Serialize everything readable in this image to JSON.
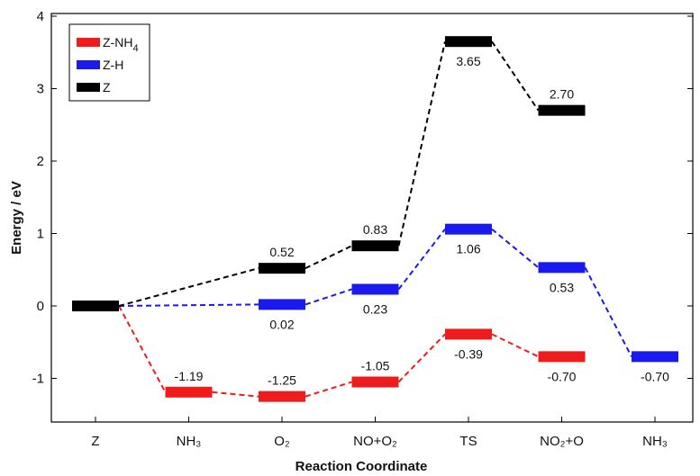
{
  "chart_data": {
    "type": "line",
    "xlabel": "Reaction Coordinate",
    "ylabel": "Energy / eV",
    "ylim": [
      -1.6,
      4.0
    ],
    "yticks": [
      "4",
      "3",
      "2",
      "1",
      "0",
      "-1"
    ],
    "yticks_values": [
      4,
      3,
      2,
      1,
      0,
      -1
    ],
    "categories": [
      "Z",
      "NH₃",
      "O₂",
      "NO+O₂",
      "TS",
      "NO₂+O",
      "NH₃"
    ],
    "legend_position": "top-left",
    "series": [
      {
        "name": "Z-NH₄",
        "name_main": "Z-NH",
        "name_sub": "4",
        "color": "#ee1c1c",
        "points": [
          {
            "x": 0,
            "y": 0
          },
          {
            "x": 1,
            "y": -1.19,
            "label": "-1.19"
          },
          {
            "x": 2,
            "y": -1.25,
            "label": "-1.25"
          },
          {
            "x": 3,
            "y": -1.05,
            "label": "-1.05"
          },
          {
            "x": 4,
            "y": -0.39,
            "label": "-0.39"
          },
          {
            "x": 5,
            "y": -0.7,
            "label": "-0.70"
          }
        ]
      },
      {
        "name": "Z-H",
        "color": "#1a1aee",
        "points": [
          {
            "x": 0,
            "y": 0
          },
          {
            "x": 2,
            "y": 0.02,
            "label": "0.02"
          },
          {
            "x": 3,
            "y": 0.23,
            "label": "0.23"
          },
          {
            "x": 4,
            "y": 1.06,
            "label": "1.06"
          },
          {
            "x": 5,
            "y": 0.53,
            "label": "0.53"
          },
          {
            "x": 6,
            "y": -0.7,
            "label": "-0.70"
          }
        ]
      },
      {
        "name": "Z",
        "color": "#000000",
        "points": [
          {
            "x": 0,
            "y": 0
          },
          {
            "x": 2,
            "y": 0.52,
            "label": "0.52"
          },
          {
            "x": 3,
            "y": 0.83,
            "label": "0.83"
          },
          {
            "x": 4,
            "y": 3.65,
            "label": "3.65"
          },
          {
            "x": 5,
            "y": 2.7,
            "label": "2.70"
          }
        ]
      }
    ]
  }
}
